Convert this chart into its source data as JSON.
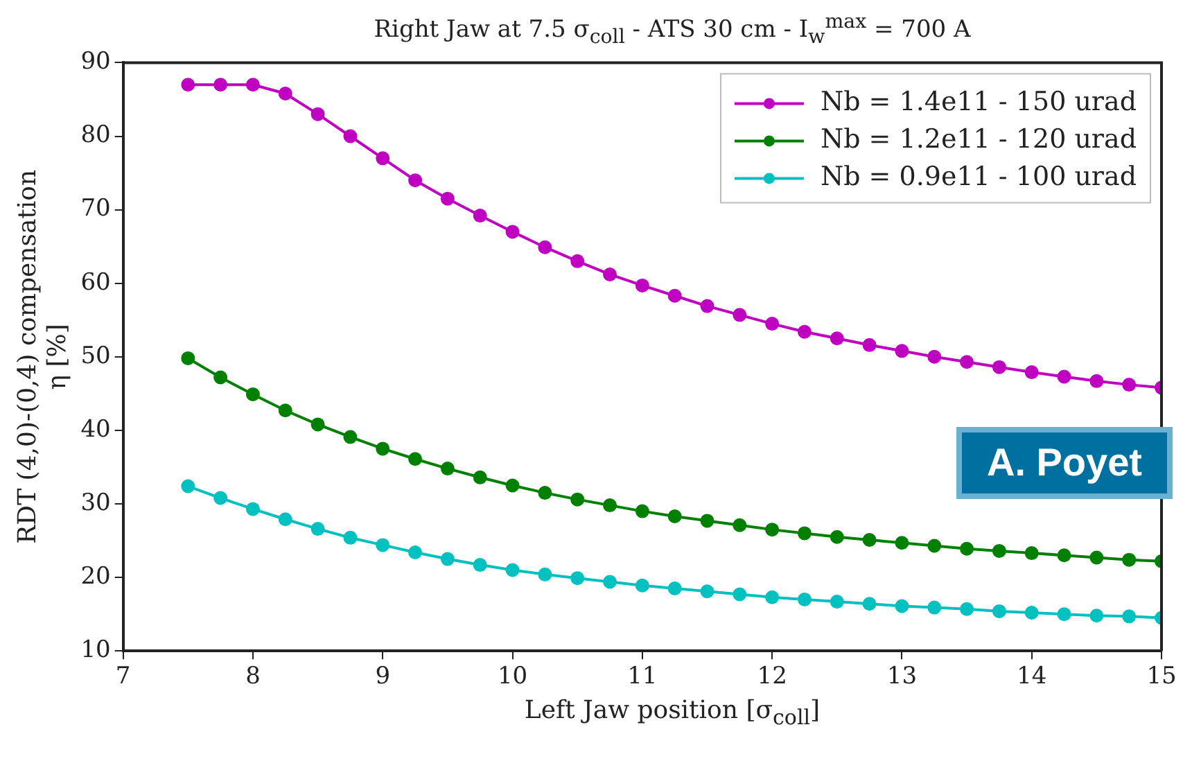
{
  "chart_data": {
    "type": "line",
    "title": "Right Jaw at 7.5 σ$_{coll}$ - ATS 30 cm - I$_{w}$$^{max}$ = 700 A",
    "xlabel": "Left Jaw position [σ$_{coll}$]",
    "ylabel": "RDT (4,0)-(0,4) compensation\nη [%]",
    "x": [
      7.5,
      7.75,
      8,
      8.25,
      8.5,
      8.75,
      9,
      9.25,
      9.5,
      9.75,
      10,
      10.25,
      10.5,
      10.75,
      11,
      11.25,
      11.5,
      11.75,
      12,
      12.25,
      12.5,
      12.75,
      13,
      13.25,
      13.5,
      13.75,
      14,
      14.25,
      14.5,
      14.75,
      15
    ],
    "series": [
      {
        "name": "Nb = 1.4e11 - 150 urad",
        "color": "#c000c0",
        "values": [
          87,
          87,
          87,
          85.8,
          83,
          80,
          77,
          74,
          71.5,
          69.2,
          67,
          64.9,
          63,
          61.2,
          59.7,
          58.3,
          56.9,
          55.7,
          54.5,
          53.4,
          52.5,
          51.6,
          50.8,
          50,
          49.3,
          48.6,
          47.9,
          47.3,
          46.7,
          46.2,
          45.8
        ]
      },
      {
        "name": "Nb = 1.2e11 - 120 urad",
        "color": "#008000",
        "values": [
          49.8,
          47.2,
          44.9,
          42.7,
          40.8,
          39.1,
          37.5,
          36.1,
          34.8,
          33.6,
          32.5,
          31.5,
          30.6,
          29.8,
          29,
          28.3,
          27.7,
          27.1,
          26.5,
          26,
          25.5,
          25.1,
          24.7,
          24.3,
          23.9,
          23.6,
          23.3,
          23,
          22.7,
          22.4,
          22.2
        ]
      },
      {
        "name": "Nb = 0.9e11 - 100 urad",
        "color": "#00c0c0",
        "values": [
          32.4,
          30.8,
          29.3,
          27.9,
          26.6,
          25.4,
          24.4,
          23.4,
          22.5,
          21.7,
          21,
          20.4,
          19.9,
          19.4,
          18.9,
          18.5,
          18.1,
          17.7,
          17.3,
          17,
          16.7,
          16.4,
          16.1,
          15.9,
          15.7,
          15.4,
          15.2,
          15,
          14.8,
          14.7,
          14.5
        ]
      }
    ],
    "xlim": [
      7,
      15
    ],
    "xticks": [
      7,
      8,
      9,
      10,
      11,
      12,
      13,
      14,
      15
    ],
    "ylim": [
      10,
      90
    ],
    "yticks": [
      10,
      20,
      30,
      40,
      50,
      60,
      70,
      80,
      90
    ],
    "grid": false,
    "legend": "top right",
    "marker": "circle",
    "line_style": "solid",
    "annotations": [
      "A. Poyet"
    ]
  }
}
